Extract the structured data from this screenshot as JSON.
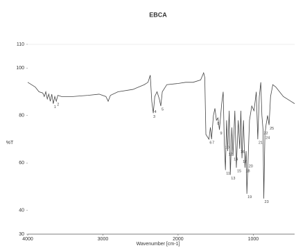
{
  "chart_data": {
    "type": "line",
    "title": "EBCA",
    "xlabel": "Wavenumber [cm-1]",
    "ylabel": "%T",
    "x": [
      4000,
      3950,
      3900,
      3850,
      3800,
      3780,
      3760,
      3740,
      3720,
      3700,
      3680,
      3660,
      3640,
      3620,
      3600,
      3550,
      3400,
      3200,
      3050,
      2960,
      2930,
      2900,
      2800,
      2600,
      2450,
      2400,
      2370,
      2350,
      2330,
      2310,
      2280,
      2250,
      2230,
      2210,
      2150,
      2000,
      1900,
      1800,
      1700,
      1660,
      1645,
      1630,
      1590,
      1570,
      1555,
      1530,
      1510,
      1490,
      1470,
      1450,
      1420,
      1400,
      1385,
      1370,
      1355,
      1340,
      1320,
      1305,
      1285,
      1270,
      1245,
      1225,
      1200,
      1180,
      1165,
      1150,
      1130,
      1110,
      1095,
      1085,
      1070,
      1050,
      1020,
      990,
      960,
      940,
      920,
      900,
      885,
      870,
      860,
      845,
      830,
      810,
      790,
      770,
      740,
      700,
      650,
      600,
      500,
      450
    ],
    "series": [
      {
        "color": "#444444",
        "values": [
          94,
          93,
          92,
          90,
          89.5,
          88,
          90,
          87,
          89,
          86,
          89,
          85,
          88,
          86,
          88.5,
          88,
          88,
          88.5,
          89,
          88,
          86,
          88.5,
          90,
          91,
          93,
          94,
          97,
          86,
          81,
          88,
          90,
          87,
          84,
          90,
          93,
          93.5,
          94,
          94,
          95,
          98,
          96,
          72,
          70,
          75,
          70,
          80,
          83,
          78,
          79,
          74,
          85,
          90,
          68,
          57,
          78,
          65,
          82,
          55,
          75,
          63,
          82,
          58,
          78,
          66,
          82,
          62,
          78,
          58,
          65,
          47,
          60,
          78,
          84,
          82,
          90,
          70,
          88,
          94,
          80,
          74,
          45,
          72,
          76,
          80,
          76,
          88,
          93,
          92,
          90,
          88,
          86,
          85
        ]
      }
    ],
    "peaks": [
      {
        "label": "1",
        "x": 3660,
        "y": 85
      },
      {
        "label": "2",
        "x": 3620,
        "y": 86
      },
      {
        "label": "3",
        "x": 2340,
        "y": 81
      },
      {
        "label": "4",
        "x": 2325,
        "y": 83
      },
      {
        "label": "5",
        "x": 2230,
        "y": 84
      },
      {
        "label": "6",
        "x": 1590,
        "y": 70
      },
      {
        "label": "7",
        "x": 1555,
        "y": 70
      },
      {
        "label": "8",
        "x": 1490,
        "y": 78
      },
      {
        "label": "9",
        "x": 1450,
        "y": 74
      },
      {
        "label": "10",
        "x": 1385,
        "y": 68
      },
      {
        "label": "11",
        "x": 1370,
        "y": 57
      },
      {
        "label": "12",
        "x": 1340,
        "y": 65
      },
      {
        "label": "13",
        "x": 1305,
        "y": 55
      },
      {
        "label": "14",
        "x": 1270,
        "y": 63
      },
      {
        "label": "15",
        "x": 1225,
        "y": 58
      },
      {
        "label": "16",
        "x": 1180,
        "y": 66
      },
      {
        "label": "17",
        "x": 1150,
        "y": 62
      },
      {
        "label": "18",
        "x": 1110,
        "y": 58
      },
      {
        "label": "19",
        "x": 1085,
        "y": 47
      },
      {
        "label": "20",
        "x": 1070,
        "y": 60
      },
      {
        "label": "21",
        "x": 940,
        "y": 70
      },
      {
        "label": "22",
        "x": 870,
        "y": 74
      },
      {
        "label": "23",
        "x": 860,
        "y": 45
      },
      {
        "label": "24",
        "x": 845,
        "y": 72
      },
      {
        "label": "25",
        "x": 790,
        "y": 76
      }
    ],
    "xlim": [
      4000,
      450
    ],
    "ylim": [
      30,
      110
    ],
    "xticks": [
      4000,
      3000,
      2000,
      1000
    ],
    "yticks": [
      30,
      40,
      60,
      80,
      100,
      110
    ]
  }
}
